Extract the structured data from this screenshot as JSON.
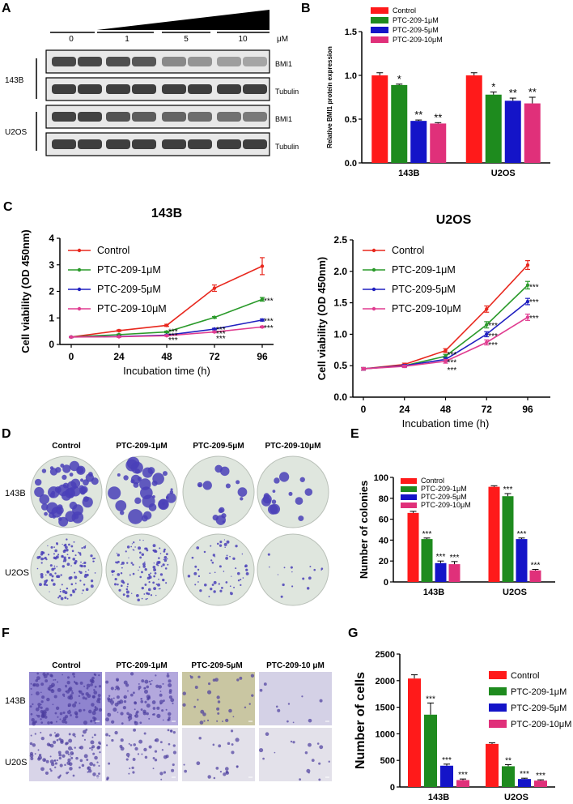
{
  "panel_labels": {
    "a": "A",
    "b": "B",
    "c": "C",
    "d": "D",
    "e": "E",
    "f": "F",
    "g": "G"
  },
  "colors": {
    "control": "#ff1a1a",
    "d1": "#1e8b1e",
    "d5": "#1414c8",
    "d10": "#e0307a",
    "line_control": "#e8281e",
    "line_d1": "#2a9a2a",
    "line_d5": "#2020c0",
    "line_d10": "#e03c90",
    "stain": "#4a3fb8",
    "plate_bg": "#dfe6de",
    "transwell_bg": "#c9c2e6"
  },
  "panel_a": {
    "dose_labels": [
      "0",
      "1",
      "5",
      "10"
    ],
    "unit": "μM",
    "cell_lines": [
      "143B",
      "U2OS"
    ],
    "band_labels": [
      "BMI1",
      "Tubulin",
      "BMI1",
      "Tubulin"
    ],
    "band_intensity": [
      [
        0.85,
        0.85,
        0.82,
        0.78,
        0.55,
        0.5,
        0.45,
        0.42
      ],
      [
        0.9,
        0.9,
        0.9,
        0.9,
        0.9,
        0.9,
        0.9,
        0.9
      ],
      [
        0.88,
        0.88,
        0.8,
        0.76,
        0.72,
        0.68,
        0.66,
        0.62
      ],
      [
        0.9,
        0.9,
        0.9,
        0.9,
        0.9,
        0.9,
        0.9,
        0.9
      ]
    ]
  },
  "chart_data": [
    {
      "id": "B",
      "type": "bar",
      "title": "",
      "categories": [
        "143B",
        "U2OS"
      ],
      "ylabel": "Relative BMI1 protein expression",
      "xlabel": "",
      "ylim": [
        0,
        1.5
      ],
      "yticks": [
        "0.0",
        "0.5",
        "1.0",
        "1.5"
      ],
      "ytick_values": [
        0,
        0.5,
        1.0,
        1.5
      ],
      "legend_position": "top-left",
      "series": [
        {
          "name": "Control",
          "values": [
            1.0,
            1.0
          ],
          "errors": [
            0.03,
            0.03
          ],
          "sig": [
            "",
            ""
          ]
        },
        {
          "name": "PTC-209-1μM",
          "values": [
            0.89,
            0.78
          ],
          "errors": [
            0.01,
            0.03
          ],
          "sig": [
            "*",
            "*"
          ]
        },
        {
          "name": "PTC-209-5μM",
          "values": [
            0.48,
            0.71
          ],
          "errors": [
            0.01,
            0.03
          ],
          "sig": [
            "**",
            "**"
          ]
        },
        {
          "name": "PTC-209-10μM",
          "values": [
            0.45,
            0.68
          ],
          "errors": [
            0.01,
            0.07
          ],
          "sig": [
            "**",
            "**"
          ]
        }
      ]
    },
    {
      "id": "C1",
      "type": "line",
      "title": "143B",
      "xlabel": "Incubation time (h)",
      "ylabel": "Cell viability (OD 450nm)",
      "x": [
        0,
        24,
        48,
        72,
        96
      ],
      "xticks": [
        "0",
        "24",
        "48",
        "72",
        "96"
      ],
      "ylim": [
        0,
        4
      ],
      "yticks": [
        "0",
        "1",
        "2",
        "3",
        "4"
      ],
      "ytick_values": [
        0,
        1,
        2,
        3,
        4
      ],
      "legend_position": "top-left",
      "series": [
        {
          "name": "Control",
          "values": [
            0.28,
            0.52,
            0.72,
            2.12,
            2.95
          ],
          "errors": [
            0.02,
            0.03,
            0.04,
            0.12,
            0.32
          ]
        },
        {
          "name": "PTC-209-1μM",
          "values": [
            0.28,
            0.37,
            0.47,
            1.02,
            1.7
          ],
          "errors": [
            0.02,
            0.02,
            0.03,
            0.03,
            0.07
          ]
        },
        {
          "name": "PTC-209-5μM",
          "values": [
            0.28,
            0.3,
            0.35,
            0.58,
            0.92
          ],
          "errors": [
            0.02,
            0.02,
            0.02,
            0.03,
            0.04
          ]
        },
        {
          "name": "PTC-209-10μM",
          "values": [
            0.28,
            0.29,
            0.33,
            0.47,
            0.66
          ],
          "errors": [
            0.02,
            0.02,
            0.02,
            0.02,
            0.03
          ]
        }
      ],
      "annotations": [
        {
          "x": 48,
          "y": 0.5,
          "text": "***"
        },
        {
          "x": 48,
          "y": 0.35,
          "text": "***"
        },
        {
          "x": 48,
          "y": 0.18,
          "text": "***"
        },
        {
          "x": 72,
          "y": 0.58,
          "text": "***"
        },
        {
          "x": 72,
          "y": 0.42,
          "text": "***"
        },
        {
          "x": 72,
          "y": 0.25,
          "text": "***"
        },
        {
          "x": 96,
          "y": 1.66,
          "text": "***"
        },
        {
          "x": 96,
          "y": 0.9,
          "text": "***"
        },
        {
          "x": 96,
          "y": 0.64,
          "text": "***"
        }
      ]
    },
    {
      "id": "C2",
      "type": "line",
      "title": "U2OS",
      "xlabel": "Incubation time (h)",
      "ylabel": "Cell viability (OD 450nm)",
      "x": [
        0,
        24,
        48,
        72,
        96
      ],
      "xticks": [
        "0",
        "24",
        "48",
        "72",
        "96"
      ],
      "ylim": [
        0,
        2.5
      ],
      "yticks": [
        "0.0",
        "0.5",
        "1.0",
        "1.5",
        "2.0",
        "2.5"
      ],
      "ytick_values": [
        0,
        0.5,
        1.0,
        1.5,
        2.0,
        2.5
      ],
      "legend_position": "top-left",
      "series": [
        {
          "name": "Control",
          "values": [
            0.45,
            0.52,
            0.74,
            1.4,
            2.1
          ],
          "errors": [
            0.02,
            0.02,
            0.03,
            0.05,
            0.07
          ]
        },
        {
          "name": "PTC-209-1μM",
          "values": [
            0.45,
            0.5,
            0.65,
            1.15,
            1.78
          ],
          "errors": [
            0.02,
            0.02,
            0.03,
            0.05,
            0.06
          ]
        },
        {
          "name": "PTC-209-5μM",
          "values": [
            0.45,
            0.5,
            0.6,
            1.0,
            1.52
          ],
          "errors": [
            0.02,
            0.02,
            0.03,
            0.04,
            0.05
          ]
        },
        {
          "name": "PTC-209-10μM",
          "values": [
            0.45,
            0.49,
            0.57,
            0.87,
            1.27
          ],
          "errors": [
            0.02,
            0.02,
            0.03,
            0.04,
            0.05
          ]
        }
      ],
      "annotations": [
        {
          "x": 48,
          "y": 0.68,
          "text": "***"
        },
        {
          "x": 48,
          "y": 0.56,
          "text": "***"
        },
        {
          "x": 48,
          "y": 0.44,
          "text": "***"
        },
        {
          "x": 72,
          "y": 1.15,
          "text": "***"
        },
        {
          "x": 72,
          "y": 0.98,
          "text": "***"
        },
        {
          "x": 72,
          "y": 0.84,
          "text": "***"
        },
        {
          "x": 96,
          "y": 1.76,
          "text": "***"
        },
        {
          "x": 96,
          "y": 1.52,
          "text": "***"
        },
        {
          "x": 96,
          "y": 1.26,
          "text": "***"
        }
      ]
    },
    {
      "id": "E",
      "type": "bar",
      "title": "",
      "categories": [
        "143B",
        "U2OS"
      ],
      "ylabel": "Number of colonies",
      "xlabel": "",
      "ylim": [
        0,
        100
      ],
      "yticks": [
        "0",
        "20",
        "40",
        "60",
        "80",
        "100"
      ],
      "ytick_values": [
        0,
        20,
        40,
        60,
        80,
        100
      ],
      "legend_position": "top-left",
      "series": [
        {
          "name": "Control",
          "values": [
            66,
            91
          ],
          "errors": [
            1.5,
            1.0
          ],
          "sig": [
            "",
            ""
          ]
        },
        {
          "name": "PTC-209-1μM",
          "values": [
            41,
            82
          ],
          "errors": [
            1.0,
            2.5
          ],
          "sig": [
            "***",
            "***"
          ]
        },
        {
          "name": "PTC-209-5μM",
          "values": [
            18,
            41
          ],
          "errors": [
            2.0,
            1.0
          ],
          "sig": [
            "***",
            "***"
          ]
        },
        {
          "name": "PTC-209-10μM",
          "values": [
            17,
            11
          ],
          "errors": [
            2.5,
            1.0
          ],
          "sig": [
            "***",
            "***"
          ]
        }
      ]
    },
    {
      "id": "G",
      "type": "bar",
      "title": "",
      "categories": [
        "143B",
        "U2OS"
      ],
      "ylabel": "Number of cells",
      "xlabel": "",
      "ylim": [
        0,
        2500
      ],
      "yticks": [
        "0",
        "500",
        "1000",
        "1500",
        "2000",
        "2500"
      ],
      "ytick_values": [
        0,
        500,
        1000,
        1500,
        2000,
        2500
      ],
      "legend_position": "top-right",
      "series": [
        {
          "name": "Control",
          "values": [
            2040,
            810
          ],
          "errors": [
            70,
            20
          ],
          "sig": [
            "",
            ""
          ]
        },
        {
          "name": "PTC-209-1μM",
          "values": [
            1360,
            390
          ],
          "errors": [
            220,
            30
          ],
          "sig": [
            "***",
            "**"
          ]
        },
        {
          "name": "PTC-209-5μM",
          "values": [
            400,
            150
          ],
          "errors": [
            30,
            15
          ],
          "sig": [
            "***",
            "***"
          ]
        },
        {
          "name": "PTC-209-10μM",
          "values": [
            130,
            120
          ],
          "errors": [
            20,
            15
          ],
          "sig": [
            "***",
            "***"
          ]
        }
      ]
    }
  ],
  "panel_d": {
    "col_labels": [
      "Control",
      "PTC-209-1μM",
      "PTC-209-5μM",
      "PTC-209-10μM"
    ],
    "row_labels": [
      "143B",
      "U2OS"
    ],
    "colony_density": [
      [
        1.0,
        0.62,
        0.27,
        0.25
      ],
      [
        1.0,
        0.9,
        0.45,
        0.12
      ]
    ]
  },
  "panel_f": {
    "col_labels": [
      "Control",
      "PTC-209-1μM",
      "PTC-209-5μM",
      "PTC-209-10 μM"
    ],
    "row_labels": [
      "143B",
      "U20S"
    ],
    "cell_density": [
      [
        1.0,
        0.67,
        0.2,
        0.06
      ],
      [
        1.0,
        0.48,
        0.19,
        0.15
      ]
    ]
  }
}
